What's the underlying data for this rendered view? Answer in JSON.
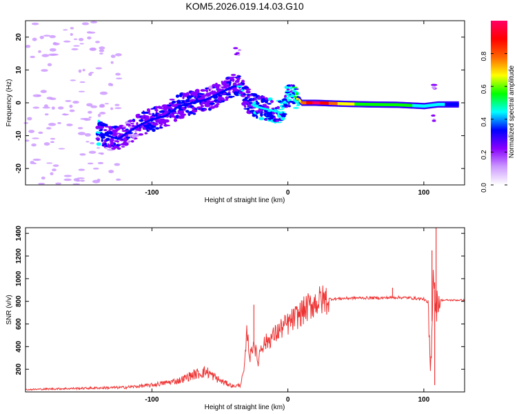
{
  "title": "KOM5.2026.019.14.03.G10",
  "chart_data": [
    {
      "type": "heatmap",
      "name": "spectrogram",
      "xlabel": "Height of straight line (km)",
      "ylabel": "Frequency (Hz)",
      "xlim": [
        -193,
        130
      ],
      "ylim": [
        -25,
        25
      ],
      "xticks": [
        -100,
        0,
        100
      ],
      "yticks": [
        -20,
        -10,
        0,
        10,
        20
      ],
      "colorbar": {
        "label": "Normalized spectral amplitude",
        "range": [
          0,
          1
        ],
        "ticks": [
          0.0,
          0.2,
          0.4,
          0.6,
          0.8
        ],
        "colors": [
          "#ffffff",
          "#cc99ff",
          "#8800ff",
          "#0000ff",
          "#00ffff",
          "#00ff00",
          "#ffff00",
          "#ff6600",
          "#ff0000",
          "#ff0066"
        ]
      },
      "trace": [
        {
          "x": -140,
          "f": -9,
          "amp": 0.3
        },
        {
          "x": -125,
          "f": -11,
          "amp": 0.2
        },
        {
          "x": -110,
          "f": -7,
          "amp": 0.2
        },
        {
          "x": -100,
          "f": -5,
          "amp": 0.25
        },
        {
          "x": -90,
          "f": -4,
          "amp": 0.2
        },
        {
          "x": -80,
          "f": -1,
          "amp": 0.25
        },
        {
          "x": -70,
          "f": 0,
          "amp": 0.25
        },
        {
          "x": -60,
          "f": 1,
          "amp": 0.2
        },
        {
          "x": -50,
          "f": 3,
          "amp": 0.2
        },
        {
          "x": -40,
          "f": 5,
          "amp": 0.25
        },
        {
          "x": -35,
          "f": 5,
          "amp": 0.3
        },
        {
          "x": -30,
          "f": 1,
          "amp": 0.25
        },
        {
          "x": -25,
          "f": -1,
          "amp": 0.3
        },
        {
          "x": -15,
          "f": -2,
          "amp": 0.3
        },
        {
          "x": -5,
          "f": -3,
          "amp": 0.35
        },
        {
          "x": 0,
          "f": 2,
          "amp": 0.35
        },
        {
          "x": 5,
          "f": 2,
          "amp": 0.4
        },
        {
          "x": 10,
          "f": 0,
          "amp": 0.7
        },
        {
          "x": 20,
          "f": 0,
          "amp": 0.95
        },
        {
          "x": 40,
          "f": -0.3,
          "amp": 0.6
        },
        {
          "x": 60,
          "f": -0.5,
          "amp": 0.5
        },
        {
          "x": 80,
          "f": -0.6,
          "amp": 0.5
        },
        {
          "x": 100,
          "f": -1,
          "amp": 0.4
        },
        {
          "x": 110,
          "f": -0.5,
          "amp": 0.35
        },
        {
          "x": 125,
          "f": -0.5,
          "amp": 0.3
        }
      ],
      "features": [
        {
          "x": -37,
          "f": 16,
          "amp": 0.15
        },
        {
          "x": 108,
          "f": 5,
          "amp": 0.15
        },
        {
          "x": 108,
          "f": -4,
          "amp": 0.15
        }
      ]
    },
    {
      "type": "line",
      "name": "snr",
      "xlabel": "Height of straight line (km)",
      "ylabel": "SNR (v/v)",
      "xlim": [
        -193,
        130
      ],
      "ylim": [
        0,
        1450
      ],
      "xticks": [
        -100,
        0,
        100
      ],
      "yticks": [
        200,
        400,
        600,
        800,
        1000,
        1200,
        1400
      ],
      "series": [
        {
          "name": "SNR",
          "color": "#ee3333",
          "x": [
            -193,
            -180,
            -160,
            -140,
            -120,
            -100,
            -90,
            -80,
            -70,
            -60,
            -50,
            -40,
            -35,
            -32,
            -30,
            -28,
            -25,
            -22,
            -20,
            -15,
            -10,
            -5,
            0,
            5,
            10,
            15,
            20,
            25,
            30,
            40,
            50,
            60,
            70,
            80,
            90,
            100,
            103,
            105,
            107,
            109,
            110,
            112,
            115,
            120,
            130
          ],
          "y": [
            20,
            25,
            30,
            35,
            40,
            60,
            80,
            100,
            150,
            180,
            100,
            50,
            60,
            200,
            550,
            300,
            450,
            250,
            400,
            450,
            500,
            560,
            600,
            650,
            700,
            750,
            790,
            810,
            820,
            825,
            830,
            830,
            830,
            835,
            830,
            820,
            780,
            150,
            1100,
            700,
            810,
            810,
            810,
            810,
            810
          ]
        }
      ],
      "spikes": [
        {
          "x": -25,
          "y": 770
        },
        {
          "x": 77,
          "y": 920
        },
        {
          "x": 106,
          "y": 1250
        },
        {
          "x": 108,
          "y": 60
        },
        {
          "x": 109,
          "y": 1450
        }
      ]
    }
  ]
}
